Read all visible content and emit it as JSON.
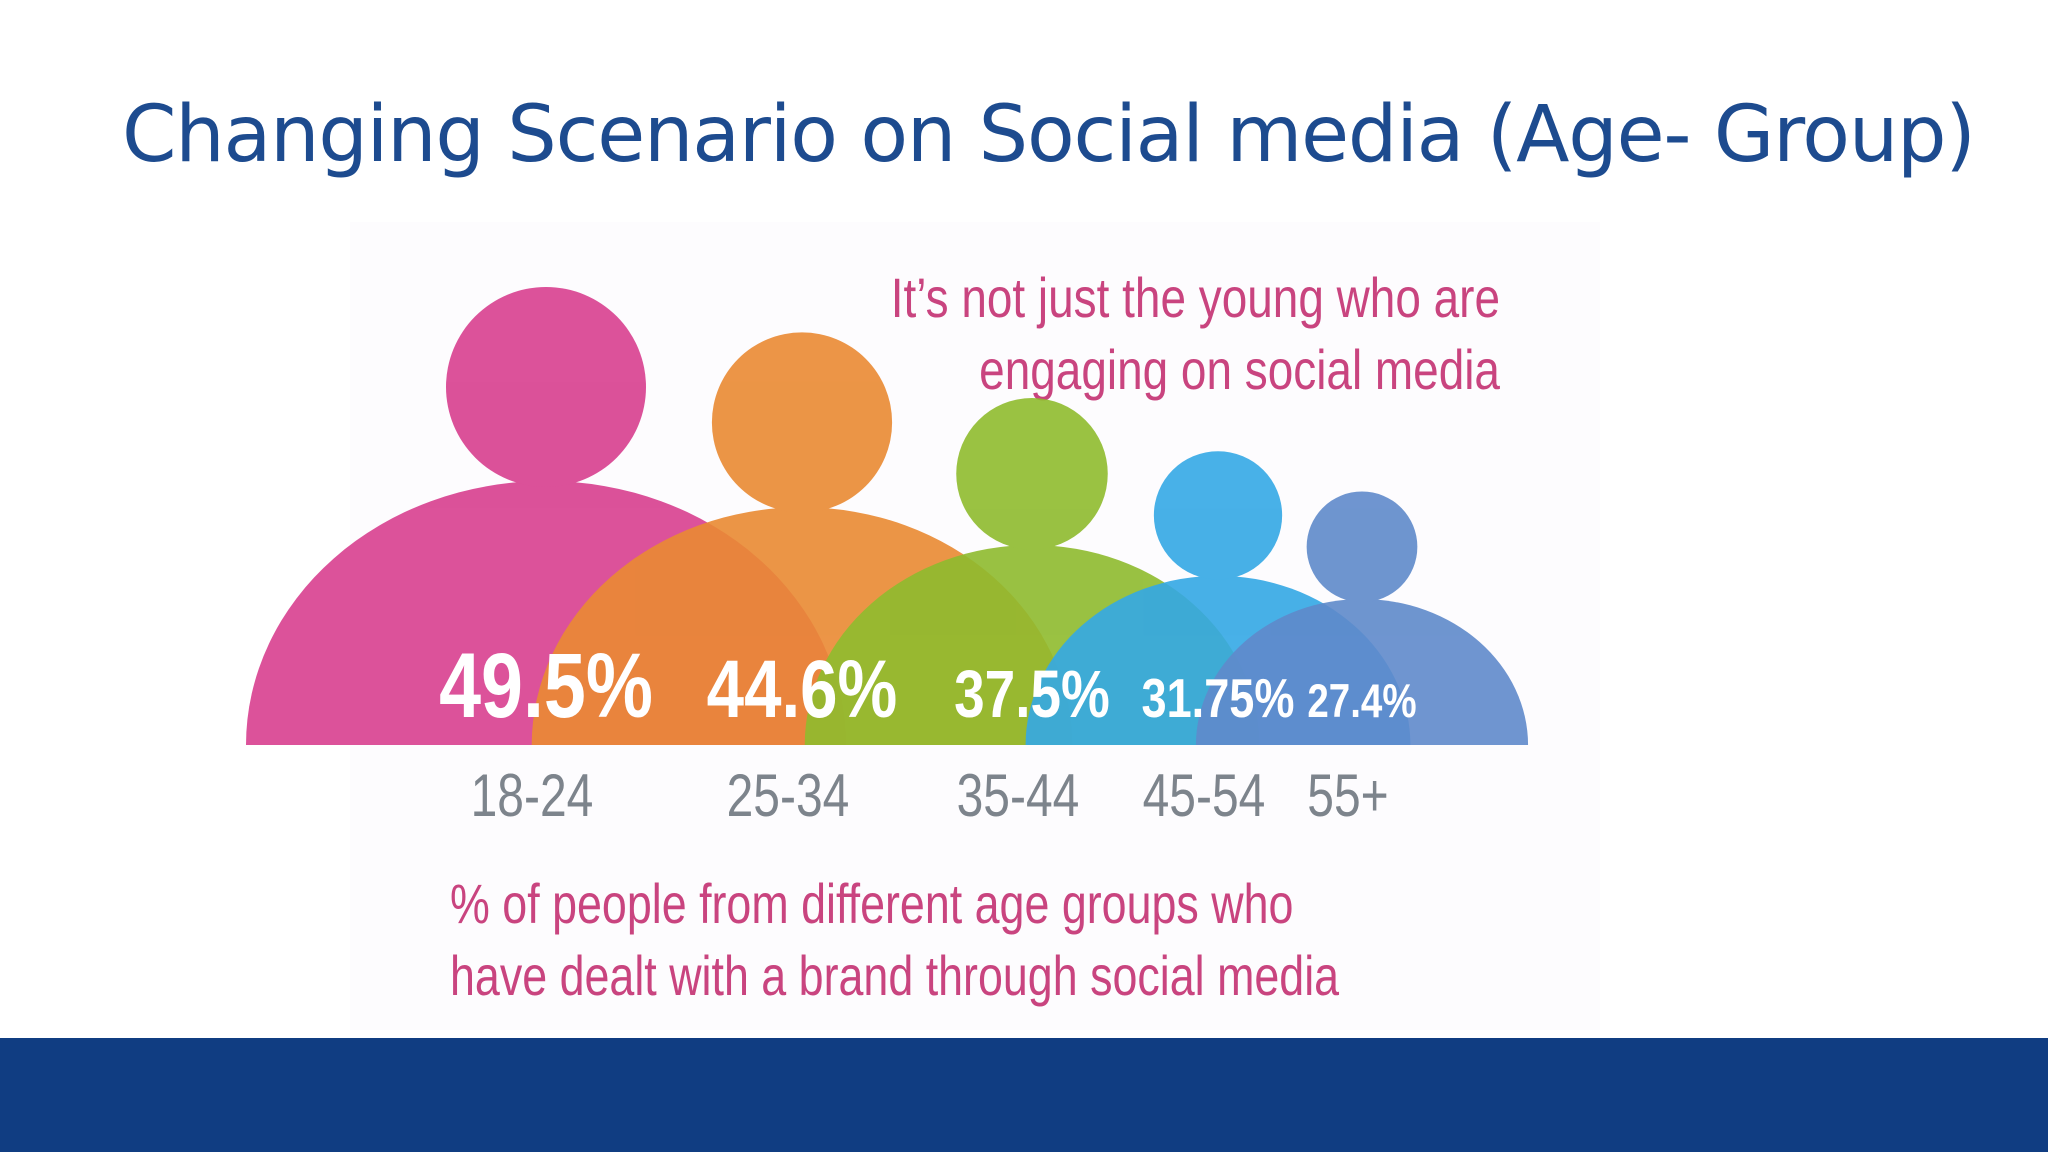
{
  "slide": {
    "title": "Changing Scenario on Social media (Age- Group)"
  },
  "chart_data": {
    "type": "bar",
    "title": "It’s not just the young who are engaging on social media",
    "title_lines": [
      "It’s not just the young who are",
      "engaging on social media"
    ],
    "caption_lines": [
      "% of people from different age groups who",
      "have dealt with a brand through social media"
    ],
    "categories": [
      "18-24",
      "25-34",
      "35-44",
      "45-54",
      "55+"
    ],
    "values": [
      49.5,
      44.6,
      37.5,
      31.75,
      27.4
    ],
    "value_labels": [
      "49.5%",
      "44.6%",
      "37.5%",
      "31.75%",
      "27.4%"
    ],
    "colors": [
      "#d83f8f",
      "#ea8a33",
      "#8fbb2e",
      "#34a8e5",
      "#5f8acb"
    ],
    "label_color": "#7d848c",
    "unit": "%",
    "grid": false,
    "legend": "none",
    "mark_shape": "person-silhouette"
  },
  "colors": {
    "title": "#1d4b8f",
    "accent_text": "#c9447f",
    "footer_bar": "#103d82"
  }
}
